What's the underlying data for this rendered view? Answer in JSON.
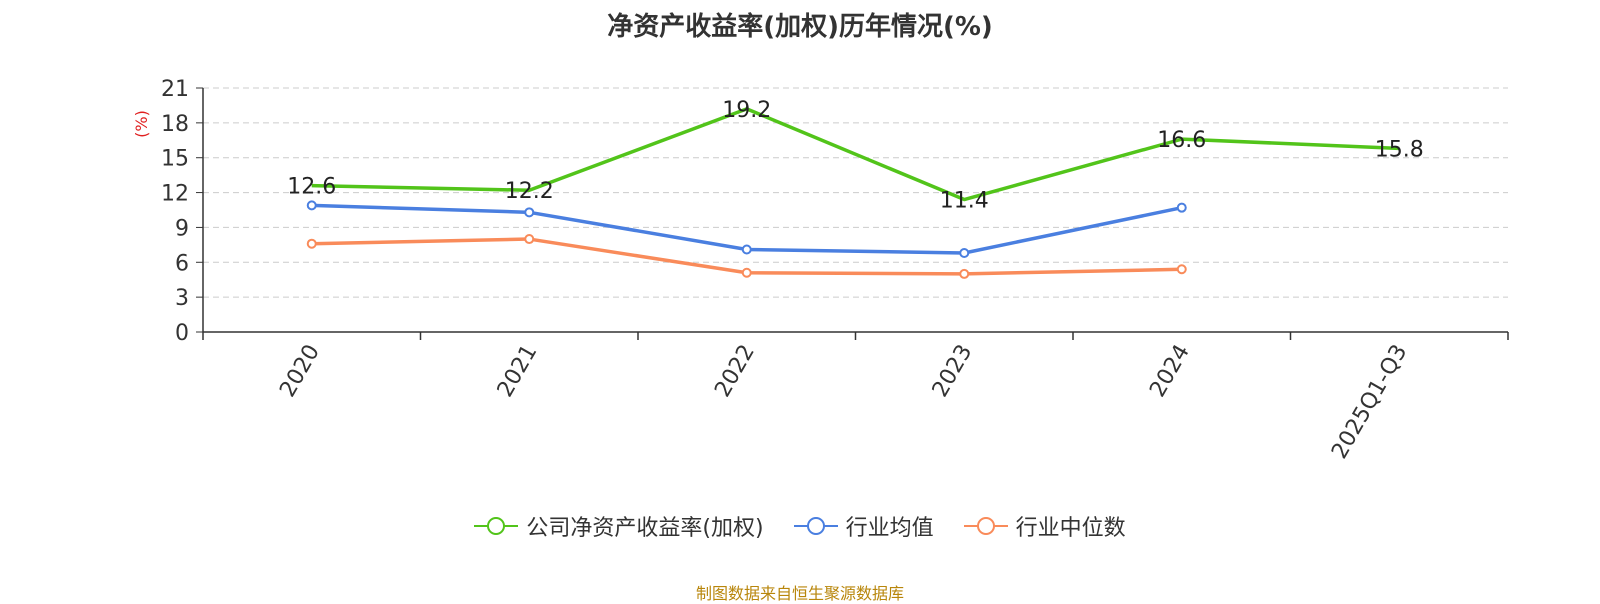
{
  "chart_data": {
    "type": "line",
    "title": "净资产收益率(加权)历年情况(%)",
    "ylabel": "(%)",
    "xlabel": "",
    "categories": [
      "2020",
      "2021",
      "2022",
      "2023",
      "2024",
      "2025Q1-Q3"
    ],
    "ylim": [
      0,
      21
    ],
    "yticks": [
      0,
      3,
      6,
      9,
      12,
      15,
      18,
      21
    ],
    "grid": true,
    "legend_position": "bottom",
    "series": [
      {
        "name": "公司净资产收益率(加权)",
        "color": "#52c41a",
        "values": [
          12.6,
          12.2,
          19.2,
          11.4,
          16.6,
          15.8
        ],
        "show_labels": true,
        "show_markers": false
      },
      {
        "name": "行业均值",
        "color": "#4a7fe0",
        "values": [
          10.9,
          10.3,
          7.1,
          6.8,
          10.7,
          null
        ],
        "show_labels": false,
        "show_markers": true
      },
      {
        "name": "行业中位数",
        "color": "#f98b5a",
        "values": [
          7.6,
          8.0,
          5.1,
          5.0,
          5.4,
          null
        ],
        "show_labels": false,
        "show_markers": true
      }
    ],
    "data_labels": [
      "12.6",
      "12.2",
      "19.2",
      "11.4",
      "16.6",
      "15.8"
    ]
  },
  "source": "制图数据来自恒生聚源数据库"
}
